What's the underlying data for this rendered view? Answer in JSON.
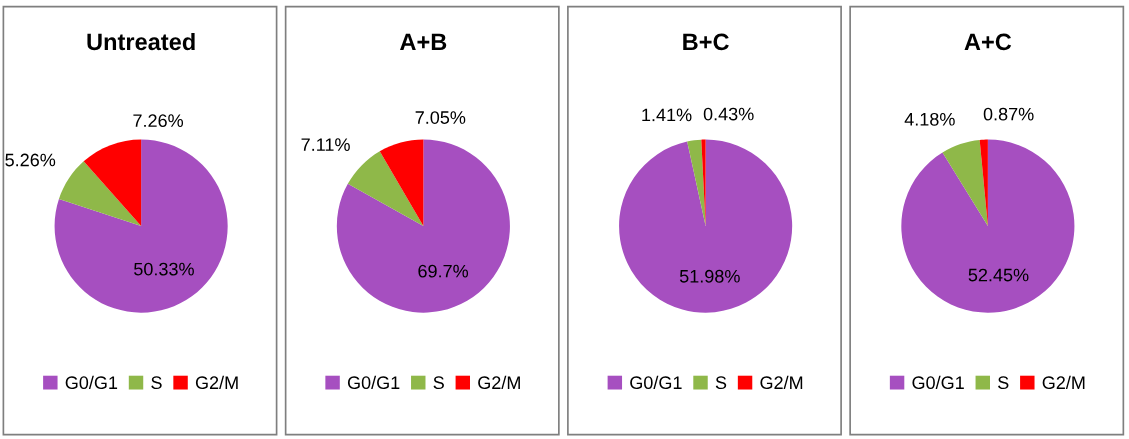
{
  "chart_data": [
    {
      "type": "pie",
      "title": "Untreated",
      "categories": [
        "G0/G1",
        "S",
        "G2/M"
      ],
      "values": [
        50.33,
        5.26,
        7.26
      ],
      "value_labels": [
        "50.33%",
        "5.26%",
        "7.26%"
      ],
      "colors": [
        "#a64fc0",
        "#8fb849",
        "#ff0000"
      ],
      "legend": "bottom"
    },
    {
      "type": "pie",
      "title": "A+B",
      "categories": [
        "G0/G1",
        "S",
        "G2/M"
      ],
      "values": [
        69.7,
        7.11,
        7.05
      ],
      "value_labels": [
        "69.7%",
        "7.11%",
        "7.05%"
      ],
      "colors": [
        "#a64fc0",
        "#8fb849",
        "#ff0000"
      ],
      "legend": "bottom"
    },
    {
      "type": "pie",
      "title": "B+C",
      "categories": [
        "G0/G1",
        "S",
        "G2/M"
      ],
      "values": [
        51.98,
        1.41,
        0.43
      ],
      "value_labels": [
        "51.98%",
        "1.41%",
        "0.43%"
      ],
      "colors": [
        "#a64fc0",
        "#8fb849",
        "#ff0000"
      ],
      "legend": "bottom"
    },
    {
      "type": "pie",
      "title": "A+C",
      "categories": [
        "G0/G1",
        "S",
        "G2/M"
      ],
      "values": [
        52.45,
        4.18,
        0.87
      ],
      "value_labels": [
        "52.45%",
        "4.18%",
        "0.87%"
      ],
      "colors": [
        "#a64fc0",
        "#8fb849",
        "#ff0000"
      ],
      "legend": "bottom"
    }
  ]
}
